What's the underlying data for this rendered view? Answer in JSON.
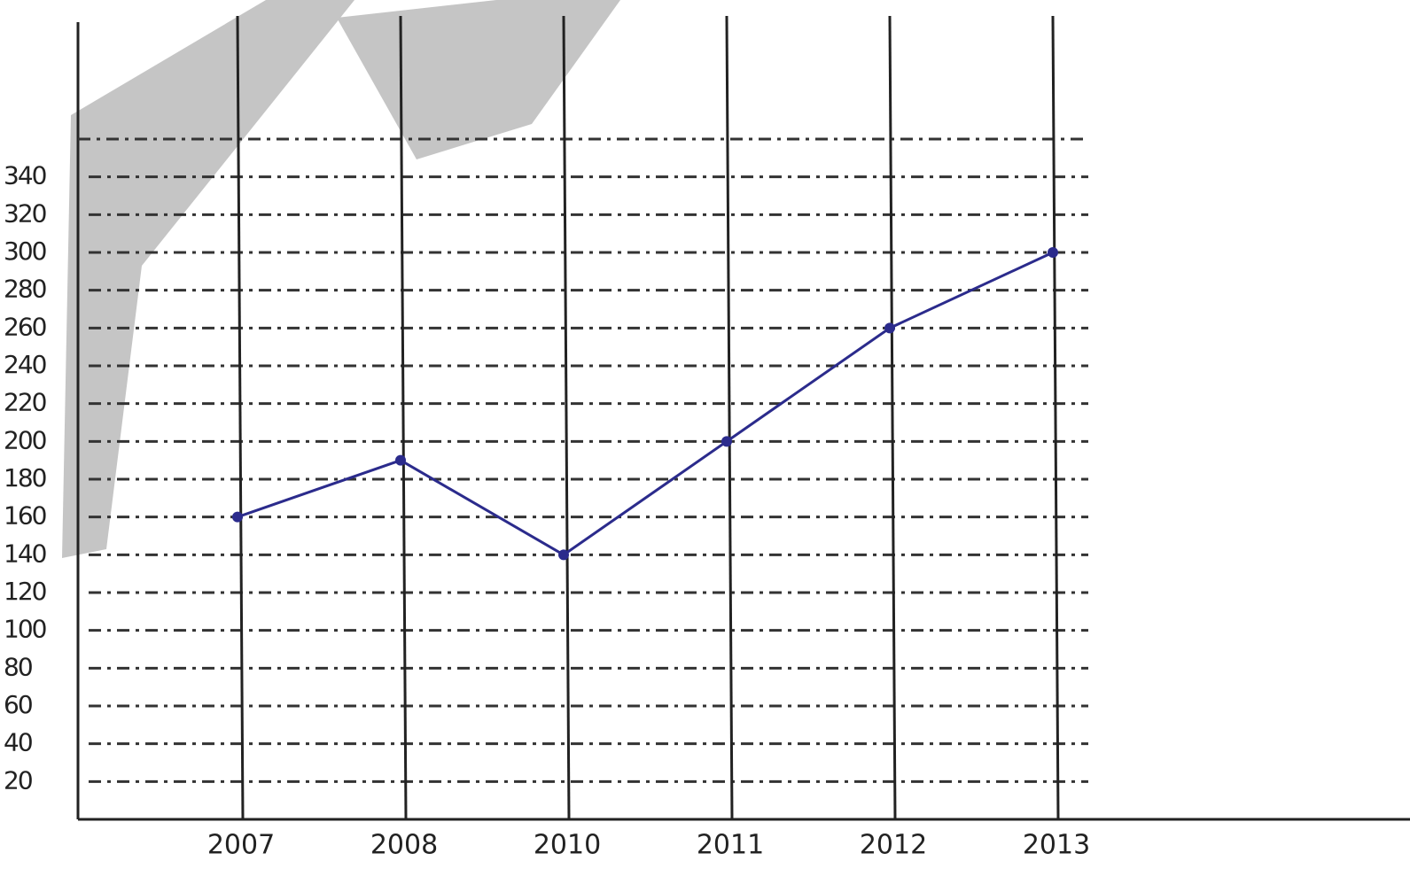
{
  "chart_data": {
    "type": "line",
    "categories": [
      "2007",
      "2008",
      "2010",
      "2011",
      "2012",
      "2013"
    ],
    "series": [
      {
        "color": "#2b2b8c",
        "values": [
          160,
          190,
          140,
          200,
          260,
          300
        ]
      }
    ],
    "ylim": [
      0,
      360
    ],
    "yticks": [
      20,
      40,
      60,
      80,
      100,
      120,
      140,
      160,
      180,
      200,
      220,
      240,
      260,
      280,
      300,
      320,
      340
    ],
    "grid": true
  }
}
